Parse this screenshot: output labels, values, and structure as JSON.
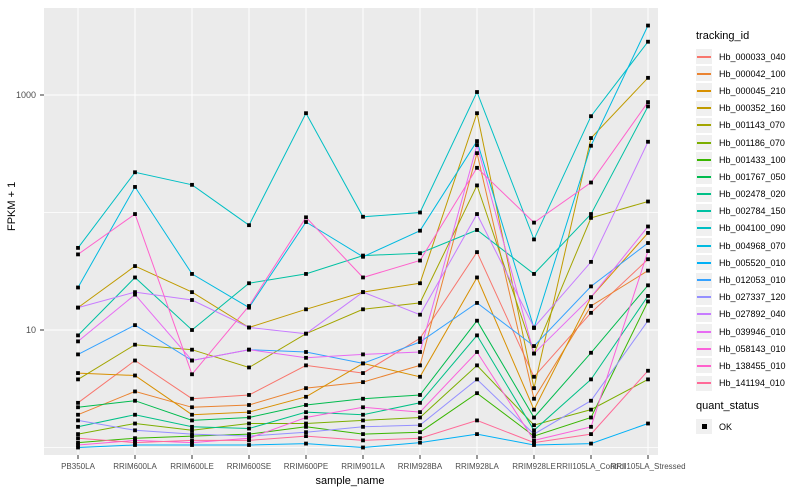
{
  "figure": {
    "background": "#ffffff",
    "panel_background": "#EBEBEB",
    "grid_color": "#FFFFFF",
    "axis_text_color": "#4D4D4D",
    "tick_color": "#333333",
    "point_color": "#000000"
  },
  "axes": {
    "x_title": "sample_name",
    "y_title": "FPKM + 1",
    "y_tick_labels": [
      "1000",
      "10"
    ]
  },
  "legend": {
    "tracking_title": "tracking_id",
    "quant_title": "quant_status",
    "quant_items": [
      {
        "label": "OK",
        "marker": "black-square"
      }
    ]
  },
  "chart_data": {
    "type": "line",
    "title": "",
    "xlabel": "sample_name",
    "ylabel": "FPKM + 1",
    "y_scale": "log10",
    "ylim": [
      1,
      5500
    ],
    "y_gridlines": [
      1,
      10,
      100,
      1000
    ],
    "y_labeled_ticks": [
      1000,
      10
    ],
    "grid": true,
    "legend_position": "right",
    "point_marker": "black-square",
    "categories": [
      "PB350LA",
      "RRIM600LA",
      "RRIM600LE",
      "RRIM600SE",
      "RRIM600PE",
      "RRIM901LA",
      "RRIM928BA",
      "RRIM928LA",
      "RRIM928LE",
      "RRII105LA_Control",
      "RRII105LA_Stressed"
    ],
    "series": [
      {
        "name": "Hb_000033_040",
        "color": "#F8766D",
        "values": [
          2.4,
          5.5,
          2.6,
          2.8,
          5.0,
          4.3,
          8.5,
          46,
          4.0,
          14,
          40
        ]
      },
      {
        "name": "Hb_000042_100",
        "color": "#EA8331",
        "values": [
          1.9,
          3.0,
          2.2,
          2.3,
          3.2,
          3.6,
          5.0,
          320,
          2.6,
          16,
          32
        ]
      },
      {
        "name": "Hb_000045_210",
        "color": "#D89000",
        "values": [
          4.3,
          4.1,
          1.9,
          2.0,
          2.7,
          5.2,
          4.0,
          28,
          2.1,
          19,
          67
        ]
      },
      {
        "name": "Hb_000352_160",
        "color": "#C09B00",
        "values": [
          15.5,
          35,
          21,
          10.5,
          15,
          21,
          25,
          700,
          3.2,
          430,
          1400
        ]
      },
      {
        "name": "Hb_001143_070",
        "color": "#A3A500",
        "values": [
          3.8,
          7.5,
          6.8,
          4.8,
          9.3,
          15,
          17,
          170,
          6.3,
          90,
          124
        ]
      },
      {
        "name": "Hb_001186_070",
        "color": "#7CAE00",
        "values": [
          1.3,
          1.6,
          1.4,
          1.6,
          1.6,
          1.7,
          1.8,
          5.0,
          1.55,
          2.1,
          3.8
        ]
      },
      {
        "name": "Hb_001433_100",
        "color": "#39B600",
        "values": [
          1.1,
          1.2,
          1.25,
          1.3,
          1.5,
          1.3,
          1.35,
          2.9,
          1.25,
          1.8,
          17.5
        ]
      },
      {
        "name": "Hb_001767_050",
        "color": "#00BB4E",
        "values": [
          2.2,
          2.5,
          1.7,
          1.8,
          2.3,
          2.6,
          2.8,
          12,
          1.8,
          6.4,
          24
        ]
      },
      {
        "name": "Hb_002478_020",
        "color": "#00C087",
        "values": [
          1.5,
          1.9,
          1.5,
          1.45,
          2.0,
          1.9,
          2.4,
          9.0,
          1.4,
          3.8,
          19.5
        ]
      },
      {
        "name": "Hb_002784_150",
        "color": "#00C1A3",
        "values": [
          9.0,
          28,
          10,
          25,
          30,
          43,
          45,
          71,
          30,
          97,
          800
        ]
      },
      {
        "name": "Hb_004100_090",
        "color": "#00BFC4",
        "values": [
          50,
          220,
          172,
          78,
          700,
          92,
          100,
          1060,
          59,
          660,
          2840
        ]
      },
      {
        "name": "Hb_004968_070",
        "color": "#00BAE0",
        "values": [
          23,
          165,
          30,
          15.5,
          83,
          42,
          70,
          405,
          10.4,
          370,
          3900
        ]
      },
      {
        "name": "Hb_005520_010",
        "color": "#00B0F6",
        "values": [
          1.0,
          1.05,
          1.05,
          1.05,
          1.08,
          1.0,
          1.1,
          1.3,
          1.05,
          1.08,
          1.6
        ]
      },
      {
        "name": "Hb_012053_010",
        "color": "#35A2FF",
        "values": [
          6.2,
          11,
          5.5,
          6.8,
          6.5,
          5.2,
          7.9,
          17,
          7.3,
          23.5,
          55
        ]
      },
      {
        "name": "Hb_027337_120",
        "color": "#9590FF",
        "values": [
          1.7,
          1.4,
          1.3,
          1.25,
          1.35,
          1.5,
          1.55,
          3.8,
          1.3,
          2.5,
          12
        ]
      },
      {
        "name": "Hb_027892_040",
        "color": "#C77CFF",
        "values": [
          15.5,
          21,
          18,
          10.5,
          9.3,
          21,
          13.5,
          97,
          10.5,
          38,
          400
        ]
      },
      {
        "name": "Hb_039946_010",
        "color": "#E76BF3",
        "values": [
          8.0,
          20,
          5.5,
          6.8,
          5.8,
          6.2,
          6.5,
          375,
          6.3,
          19,
          76
        ]
      },
      {
        "name": "Hb_058143_010",
        "color": "#FA62DB",
        "values": [
          1.05,
          1.15,
          1.1,
          1.2,
          1.8,
          2.2,
          2.0,
          6.5,
          1.15,
          1.5,
          47
        ]
      },
      {
        "name": "Hb_138455_010",
        "color": "#FF61CC",
        "values": [
          44,
          97,
          4.2,
          16,
          91,
          28,
          39,
          240,
          82,
          180,
          870
        ]
      },
      {
        "name": "Hb_141194_010",
        "color": "#FF6A98",
        "values": [
          1.2,
          1.1,
          1.15,
          1.15,
          1.25,
          1.15,
          1.2,
          1.7,
          1.1,
          1.3,
          4.5
        ]
      }
    ]
  }
}
